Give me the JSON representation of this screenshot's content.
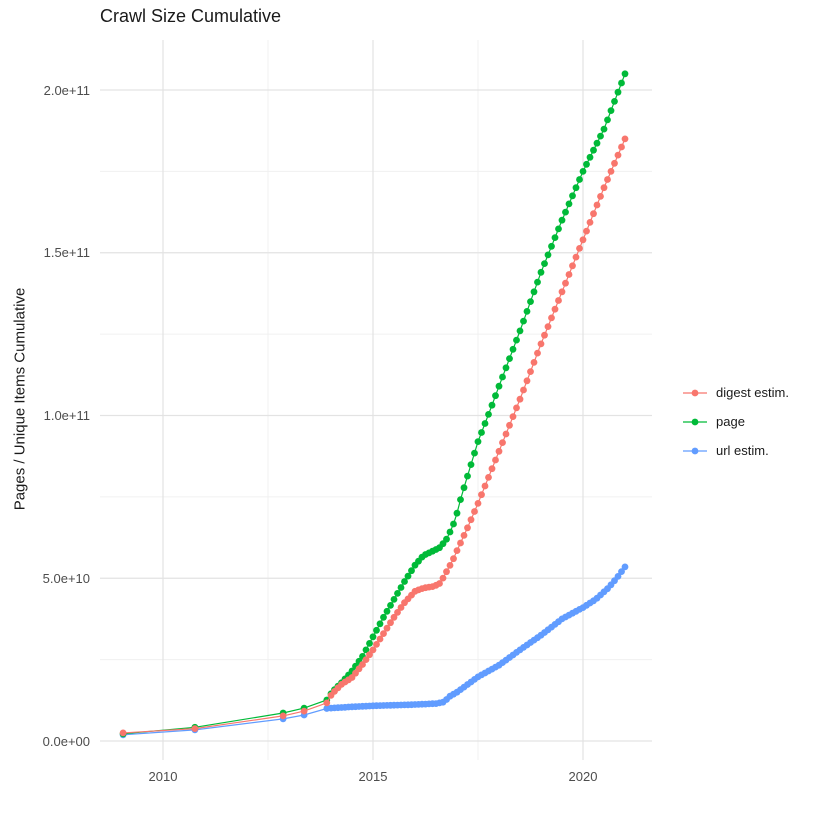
{
  "title": "Crawl Size Cumulative",
  "chart_data": {
    "type": "line",
    "title": "Crawl Size Cumulative",
    "xlabel": "",
    "ylabel": "Pages / Unique Items Cumulative",
    "xlim": [
      2008.5,
      2021.7
    ],
    "ylim": [
      0,
      215000000000.0
    ],
    "grid": true,
    "legend_position": "right",
    "x_axis": {
      "ticks": [
        2010,
        2015,
        2020
      ],
      "labels": [
        "2010",
        "2015",
        "2020"
      ],
      "minor": [
        2012.5,
        2017.5
      ]
    },
    "y_axis": {
      "label": "Pages / Unique Items Cumulative",
      "ticks": [
        0,
        50000000000.0,
        100000000000.0,
        150000000000.0,
        200000000000.0
      ],
      "labels": [
        "0.0e+00",
        "5.0e+10",
        "1.0e+11",
        "1.5e+11",
        "2.0e+11"
      ],
      "minor": [
        25000000000.0,
        75000000000.0,
        125000000000.0,
        175000000000.0
      ]
    },
    "point_interval_years": 0.08333,
    "dense_from": 2014.0,
    "series": [
      {
        "name": "digest estim.",
        "color": "#F8766D",
        "points": [
          [
            2009.05,
            2500000000.0
          ],
          [
            2010.76,
            3800000000.0
          ],
          [
            2012.86,
            7700000000.0
          ],
          [
            2013.36,
            9200000000.0
          ],
          [
            2013.9,
            11700000000.0
          ],
          [
            2014.0,
            14000000000.0
          ],
          [
            2014.1,
            15500000000.0
          ],
          [
            2014.26,
            17500000000.0
          ],
          [
            2014.5,
            19500000000.0
          ],
          [
            2014.75,
            23500000000.0
          ],
          [
            2015.0,
            28000000000.0
          ],
          [
            2015.25,
            33000000000.0
          ],
          [
            2015.5,
            38000000000.0
          ],
          [
            2015.75,
            42500000000.0
          ],
          [
            2016.0,
            46000000000.0
          ],
          [
            2016.2,
            47000000000.0
          ],
          [
            2016.45,
            47500000000.0
          ],
          [
            2016.6,
            48500000000.0
          ],
          [
            2016.75,
            52000000000.0
          ],
          [
            2016.9,
            55500000000.0
          ],
          [
            2017.0,
            58500000000.0
          ],
          [
            2017.25,
            65500000000.0
          ],
          [
            2017.5,
            73000000000.0
          ],
          [
            2018.0,
            89000000000.0
          ],
          [
            2018.5,
            105000000000.0
          ],
          [
            2019.0,
            122000000000.0
          ],
          [
            2019.5,
            138000000000.0
          ],
          [
            2020.0,
            154000000000.0
          ],
          [
            2020.5,
            170000000000.0
          ],
          [
            2021.0,
            185000000000.0
          ]
        ]
      },
      {
        "name": "page",
        "color": "#00BA38",
        "points": [
          [
            2009.05,
            2200000000.0
          ],
          [
            2010.76,
            4200000000.0
          ],
          [
            2012.86,
            8600000000.0
          ],
          [
            2013.36,
            10100000000.0
          ],
          [
            2013.9,
            12600000000.0
          ],
          [
            2014.0,
            14500000000.0
          ],
          [
            2014.1,
            16000000000.0
          ],
          [
            2014.26,
            18000000000.0
          ],
          [
            2014.5,
            21500000000.0
          ],
          [
            2014.75,
            26000000000.0
          ],
          [
            2015.0,
            32000000000.0
          ],
          [
            2015.25,
            38000000000.0
          ],
          [
            2015.5,
            43500000000.0
          ],
          [
            2015.75,
            49000000000.0
          ],
          [
            2016.0,
            54000000000.0
          ],
          [
            2016.2,
            57000000000.0
          ],
          [
            2016.45,
            58500000000.0
          ],
          [
            2016.6,
            59500000000.0
          ],
          [
            2016.75,
            62000000000.0
          ],
          [
            2016.9,
            66000000000.0
          ],
          [
            2017.0,
            70000000000.0
          ],
          [
            2017.1,
            75000000000.0
          ],
          [
            2017.5,
            92000000000.0
          ],
          [
            2017.8,
            102000000000.0
          ],
          [
            2018.0,
            109000000000.0
          ],
          [
            2018.5,
            126000000000.0
          ],
          [
            2019.0,
            144000000000.0
          ],
          [
            2019.5,
            160000000000.0
          ],
          [
            2020.0,
            175000000000.0
          ],
          [
            2020.5,
            188000000000.0
          ],
          [
            2021.0,
            205000000000.0
          ]
        ]
      },
      {
        "name": "url estim.",
        "color": "#619CFF",
        "points": [
          [
            2009.05,
            1900000000.0
          ],
          [
            2010.76,
            3400000000.0
          ],
          [
            2012.86,
            6800000000.0
          ],
          [
            2013.36,
            8000000000.0
          ],
          [
            2013.9,
            10000000000.0
          ],
          [
            2014.0,
            10100000000.0
          ],
          [
            2014.5,
            10500000000.0
          ],
          [
            2015.0,
            10800000000.0
          ],
          [
            2015.5,
            11000000000.0
          ],
          [
            2016.0,
            11200000000.0
          ],
          [
            2016.5,
            11500000000.0
          ],
          [
            2016.7,
            12000000000.0
          ],
          [
            2016.8,
            13500000000.0
          ],
          [
            2017.0,
            15000000000.0
          ],
          [
            2017.5,
            19700000000.0
          ],
          [
            2018.0,
            23300000000.0
          ],
          [
            2018.5,
            28000000000.0
          ],
          [
            2019.0,
            32500000000.0
          ],
          [
            2019.5,
            37500000000.0
          ],
          [
            2020.0,
            41000000000.0
          ],
          [
            2020.3,
            43500000000.0
          ],
          [
            2020.6,
            47000000000.0
          ],
          [
            2020.8,
            50000000000.0
          ],
          [
            2021.0,
            53500000000.0
          ]
        ]
      }
    ]
  }
}
